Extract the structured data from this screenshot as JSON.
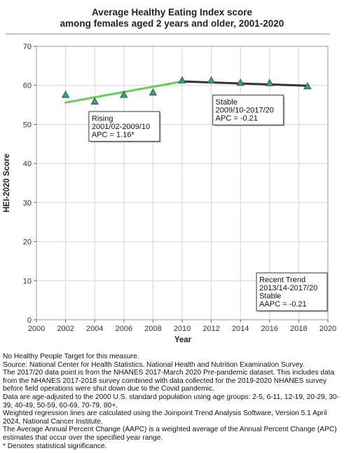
{
  "title_line1": "Average Healthy Eating Index score",
  "title_line2": "among  females aged 2 years and older, 2001-2020",
  "chart_data": {
    "type": "scatter",
    "xlabel": "Year",
    "ylabel": "HEI-2020 Score",
    "xlim": [
      2000,
      2020
    ],
    "ylim": [
      0,
      70
    ],
    "xticks": [
      2000,
      2002,
      2004,
      2006,
      2008,
      2010,
      2012,
      2014,
      2016,
      2018,
      2020
    ],
    "yticks": [
      0,
      10,
      20,
      30,
      40,
      50,
      60,
      70
    ],
    "grid": true,
    "points": {
      "x": [
        2002,
        2004,
        2006,
        2008,
        2010,
        2012,
        2014,
        2016,
        2018.6
      ],
      "y": [
        57.6,
        55.9,
        57.6,
        58.2,
        61.3,
        61.3,
        60.7,
        60.6,
        59.8
      ],
      "color": "#3a9a8c"
    },
    "trend_lines": [
      {
        "x": [
          2002,
          2010
        ],
        "y": [
          55.6,
          61.0
        ],
        "color": "#66cc5a"
      },
      {
        "x": [
          2010,
          2018.6
        ],
        "y": [
          61.0,
          59.9
        ],
        "color": "#333333"
      }
    ],
    "annotations": [
      {
        "lines": [
          "Rising",
          "2001/02-2009/10",
          "APC =  1.16*"
        ],
        "x": 2003.6,
        "y": 53.3
      },
      {
        "lines": [
          "Stable",
          "2009/10-2017/20",
          "APC = -0.21"
        ],
        "x": 2012.1,
        "y": 57.5
      },
      {
        "lines": [
          "Recent Trend",
          "2013/14-2017/20",
          "Stable",
          "AAPC = -0.21"
        ],
        "x": 2015.1,
        "y": 12.0
      }
    ]
  },
  "footnotes": [
    "No Healthy People Target for this measure.",
    "Source: National Center for Health Statistics. National Health and Nutrition Examination Survey.",
    "The 2017/20 data point is from the NHANES 2017-March 2020 Pre-pandemic dataset. This includes data from the NHANES 2017-2018 survey combined with data collected for the 2019-2020 NHANES survey before field operations were shut down due to the Covid pandemic.",
    "Data are age-adjusted to the 2000 U.S. standard population using age groups: 2-5, 6-11, 12-19, 20-29, 30-39, 40-49, 50-59, 60-69, 70-79, 80+.",
    "Weighted regression lines are calculated using the Joinpoint Trend Analysis Software, Version 5.1 April 2024, National Cancer Institute.",
    "The Average Annual Percent Change (AAPC) is a weighted average of the Annual Percent Change (APC) estimates that occur over the specified year range.",
    "* Denotes statistical significance."
  ]
}
